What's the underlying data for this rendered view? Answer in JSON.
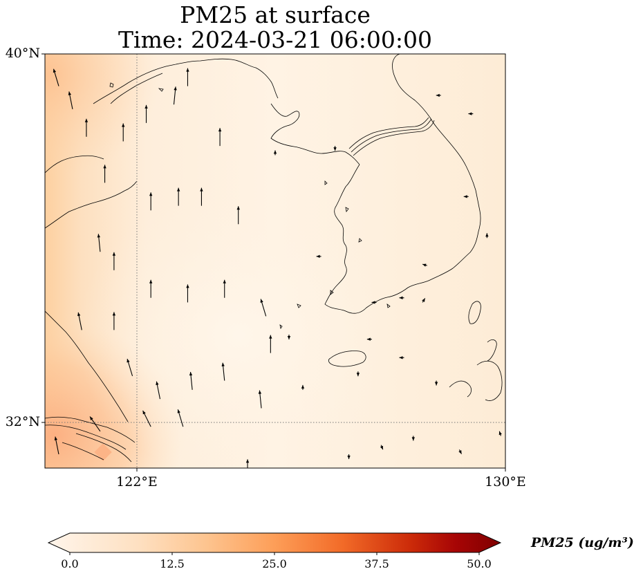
{
  "title_line1": "PM25 at surface",
  "title_line2": "Time: 2024-03-21 06:00:00",
  "map": {
    "lon_range": [
      120.0,
      130.0
    ],
    "lat_range": [
      31.0,
      40.0
    ],
    "gridlines_dotted": [
      {
        "axis": "lon",
        "value": 122
      },
      {
        "axis": "lat",
        "value": 32
      }
    ],
    "lat_ticks": [
      {
        "value": 40,
        "label": "40°N"
      },
      {
        "value": 32,
        "label": "32°N"
      }
    ],
    "lon_ticks": [
      {
        "value": 122,
        "label": "122°E"
      },
      {
        "value": 130,
        "label": "130°E"
      }
    ]
  },
  "colorbar": {
    "label": "PM25 (ug/m³)",
    "ticks": [
      "0.0",
      "12.5",
      "25.0",
      "37.5",
      "50.0"
    ],
    "range": [
      0,
      50
    ],
    "extend": "both",
    "colormap": [
      "#fff5eb",
      "#fdd1a4",
      "#fd9243",
      "#df4f05",
      "#a83603",
      "#7f2704"
    ]
  },
  "field_colors": {
    "background": "#fdebd4",
    "coast_west": "#fdd3a6",
    "hotspot": "#fcad7c",
    "clean": "#fff4e6"
  },
  "wind_arrows": [
    {
      "lon": 120.3,
      "lat": 39.3,
      "u": -0.3,
      "v": 1
    },
    {
      "lon": 120.6,
      "lat": 38.8,
      "u": -0.2,
      "v": 1
    },
    {
      "lon": 120.9,
      "lat": 38.2,
      "u": 0,
      "v": 1
    },
    {
      "lon": 121.7,
      "lat": 38.1,
      "u": 0,
      "v": 1
    },
    {
      "lon": 122.2,
      "lat": 38.5,
      "u": 0,
      "v": 1
    },
    {
      "lon": 122.8,
      "lat": 38.9,
      "u": 0.1,
      "v": 1
    },
    {
      "lon": 123.1,
      "lat": 39.3,
      "u": 0,
      "v": 1
    },
    {
      "lon": 123.8,
      "lat": 38.0,
      "u": 0,
      "v": 1
    },
    {
      "lon": 121.3,
      "lat": 37.2,
      "u": 0,
      "v": 1
    },
    {
      "lon": 122.3,
      "lat": 36.6,
      "u": 0,
      "v": 1
    },
    {
      "lon": 122.9,
      "lat": 36.7,
      "u": 0,
      "v": 1
    },
    {
      "lon": 123.4,
      "lat": 36.7,
      "u": 0,
      "v": 1
    },
    {
      "lon": 124.2,
      "lat": 36.3,
      "u": 0,
      "v": 1
    },
    {
      "lon": 121.2,
      "lat": 35.7,
      "u": -0.1,
      "v": 1
    },
    {
      "lon": 121.5,
      "lat": 35.3,
      "u": 0,
      "v": 1
    },
    {
      "lon": 122.3,
      "lat": 34.7,
      "u": 0,
      "v": 1
    },
    {
      "lon": 123.1,
      "lat": 34.6,
      "u": 0,
      "v": 1
    },
    {
      "lon": 123.9,
      "lat": 34.7,
      "u": 0,
      "v": 1
    },
    {
      "lon": 120.8,
      "lat": 34.0,
      "u": -0.2,
      "v": 1
    },
    {
      "lon": 121.5,
      "lat": 34.0,
      "u": 0,
      "v": 1
    },
    {
      "lon": 121.9,
      "lat": 33.0,
      "u": -0.3,
      "v": 1
    },
    {
      "lon": 121.2,
      "lat": 31.8,
      "u": -0.7,
      "v": 1
    },
    {
      "lon": 122.5,
      "lat": 32.5,
      "u": -0.2,
      "v": 1
    },
    {
      "lon": 123.2,
      "lat": 32.7,
      "u": -0.1,
      "v": 1
    },
    {
      "lon": 123.9,
      "lat": 32.9,
      "u": -0.1,
      "v": 1
    },
    {
      "lon": 124.7,
      "lat": 32.3,
      "u": -0.1,
      "v": 1
    },
    {
      "lon": 120.3,
      "lat": 31.3,
      "u": -0.2,
      "v": 1
    },
    {
      "lon": 122.3,
      "lat": 31.9,
      "u": -0.5,
      "v": 1
    },
    {
      "lon": 123.0,
      "lat": 31.9,
      "u": -0.3,
      "v": 1
    },
    {
      "lon": 124.9,
      "lat": 33.5,
      "u": 0,
      "v": 1
    },
    {
      "lon": 125.0,
      "lat": 37.8,
      "u": 0,
      "v": 1
    },
    {
      "lon": 126.3,
      "lat": 38.0,
      "u": 0,
      "v": -1
    },
    {
      "lon": 128.6,
      "lat": 39.1,
      "u": -1,
      "v": 0
    },
    {
      "lon": 129.3,
      "lat": 38.7,
      "u": -1,
      "v": 0
    },
    {
      "lon": 129.2,
      "lat": 36.9,
      "u": -1,
      "v": 0
    },
    {
      "lon": 128.3,
      "lat": 35.4,
      "u": -1,
      "v": 0.3
    },
    {
      "lon": 127.2,
      "lat": 34.6,
      "u": -1,
      "v": 0
    },
    {
      "lon": 126.8,
      "lat": 33.1,
      "u": 0,
      "v": -1
    },
    {
      "lon": 128.5,
      "lat": 32.9,
      "u": 0,
      "v": -1
    },
    {
      "lon": 129.0,
      "lat": 31.4,
      "u": 0.5,
      "v": -1
    },
    {
      "lon": 128.0,
      "lat": 31.7,
      "u": 0,
      "v": -1
    },
    {
      "lon": 127.3,
      "lat": 31.5,
      "u": 0.4,
      "v": -1
    },
    {
      "lon": 124.4,
      "lat": 30.8,
      "u": 0,
      "v": 1
    },
    {
      "lon": 126.6,
      "lat": 31.3,
      "u": 0,
      "v": -1
    },
    {
      "lon": 125.6,
      "lat": 32.7,
      "u": 0,
      "v": 1
    },
    {
      "lon": 127.1,
      "lat": 33.8,
      "u": -1,
      "v": 0
    },
    {
      "lon": 127.8,
      "lat": 33.4,
      "u": -1,
      "v": 0
    },
    {
      "lon": 129.9,
      "lat": 31.7,
      "u": -0.3,
      "v": 1
    },
    {
      "lon": 129.6,
      "lat": 36.0,
      "u": 0,
      "v": 1
    },
    {
      "lon": 126.0,
      "lat": 35.6,
      "u": -1,
      "v": 0
    },
    {
      "lon": 124.8,
      "lat": 34.3,
      "u": -0.3,
      "v": 1
    },
    {
      "lon": 125.3,
      "lat": 33.9,
      "u": 0,
      "v": -1
    },
    {
      "lon": 128.2,
      "lat": 34.6,
      "u": 0.6,
      "v": 1
    },
    {
      "lon": 127.8,
      "lat": 34.7,
      "u": -1,
      "v": 0
    }
  ]
}
